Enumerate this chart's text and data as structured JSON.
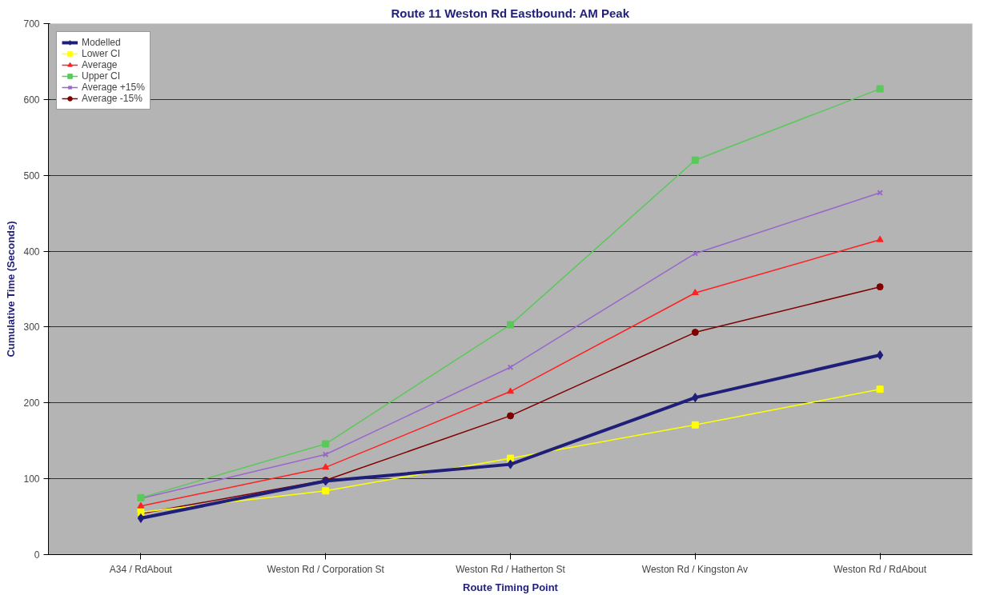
{
  "chart_data": {
    "type": "line",
    "title": "Route 11 Weston Rd Eastbound: AM Peak",
    "xlabel": "Route Timing Point",
    "ylabel": "Cumulative Time (Seconds)",
    "categories": [
      "A34 / RdAbout",
      "Weston Rd / Corporation St",
      "Weston Rd / Hatherton St",
      "Weston Rd / Kingston Av",
      "Weston Rd / RdAbout"
    ],
    "series": [
      {
        "name": "Modelled",
        "color": "#1f1f7a",
        "marker": "diamond",
        "values": [
          48,
          97,
          119,
          207,
          263
        ]
      },
      {
        "name": "Lower CI",
        "color": "#ffff00",
        "marker": "square",
        "values": [
          56,
          84,
          127,
          171,
          218
        ]
      },
      {
        "name": "Average",
        "color": "#ff2020",
        "marker": "triangle",
        "values": [
          64,
          115,
          215,
          345,
          415
        ]
      },
      {
        "name": "Upper CI",
        "color": "#5ac85a",
        "marker": "square",
        "values": [
          75,
          146,
          303,
          520,
          614
        ]
      },
      {
        "name": "Average +15%",
        "color": "#9966cc",
        "marker": "cross",
        "values": [
          74,
          132,
          247,
          397,
          477
        ]
      },
      {
        "name": "Average -15%",
        "color": "#800000",
        "marker": "circle",
        "values": [
          54,
          98,
          183,
          293,
          353
        ]
      }
    ],
    "ylim": [
      0,
      700
    ],
    "yticks": [
      0,
      100,
      200,
      300,
      400,
      500,
      600,
      700
    ],
    "grid": "y",
    "legend": "top left"
  }
}
